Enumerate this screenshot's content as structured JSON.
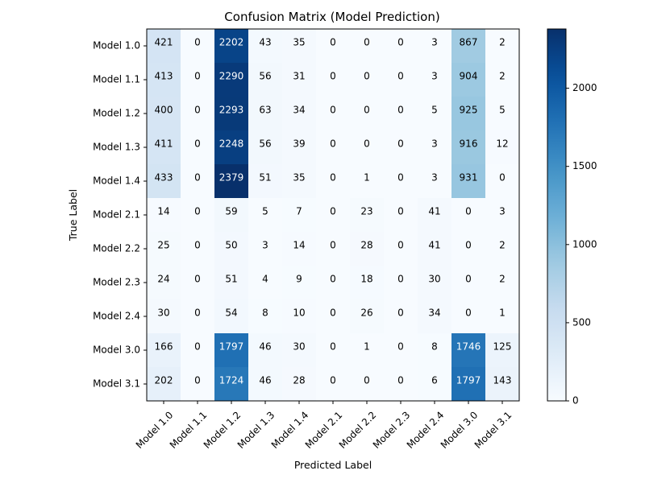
{
  "chart_data": {
    "type": "heatmap",
    "title": "Confusion Matrix (Model Prediction)",
    "xlabel": "Predicted Label",
    "ylabel": "True Label",
    "x_categories": [
      "Model 1.0",
      "Model 1.1",
      "Model 1.2",
      "Model 1.3",
      "Model 1.4",
      "Model 2.1",
      "Model 2.2",
      "Model 2.3",
      "Model 2.4",
      "Model 3.0",
      "Model 3.1"
    ],
    "y_categories": [
      "Model 1.0",
      "Model 1.1",
      "Model 1.2",
      "Model 1.3",
      "Model 1.4",
      "Model 2.1",
      "Model 2.2",
      "Model 2.3",
      "Model 2.4",
      "Model 3.0",
      "Model 3.1"
    ],
    "values": [
      [
        421,
        0,
        2202,
        43,
        35,
        0,
        0,
        0,
        3,
        867,
        2
      ],
      [
        413,
        0,
        2290,
        56,
        31,
        0,
        0,
        0,
        3,
        904,
        2
      ],
      [
        400,
        0,
        2293,
        63,
        34,
        0,
        0,
        0,
        5,
        925,
        5
      ],
      [
        411,
        0,
        2248,
        56,
        39,
        0,
        0,
        0,
        3,
        916,
        12
      ],
      [
        433,
        0,
        2379,
        51,
        35,
        0,
        1,
        0,
        3,
        931,
        0
      ],
      [
        14,
        0,
        59,
        5,
        7,
        0,
        23,
        0,
        41,
        0,
        3
      ],
      [
        25,
        0,
        50,
        3,
        14,
        0,
        28,
        0,
        41,
        0,
        2
      ],
      [
        24,
        0,
        51,
        4,
        9,
        0,
        18,
        0,
        30,
        0,
        2
      ],
      [
        30,
        0,
        54,
        8,
        10,
        0,
        26,
        0,
        34,
        0,
        1
      ],
      [
        166,
        0,
        1797,
        46,
        30,
        0,
        1,
        0,
        8,
        1746,
        125
      ],
      [
        202,
        0,
        1724,
        46,
        28,
        0,
        0,
        0,
        6,
        1797,
        143
      ]
    ],
    "colormap": "Blues",
    "value_range": [
      0,
      2379
    ],
    "colorbar": {
      "ticks": [
        "0",
        "500",
        "1000",
        "1500",
        "2000"
      ]
    },
    "x_tick_rotation": 45,
    "grid": false
  }
}
